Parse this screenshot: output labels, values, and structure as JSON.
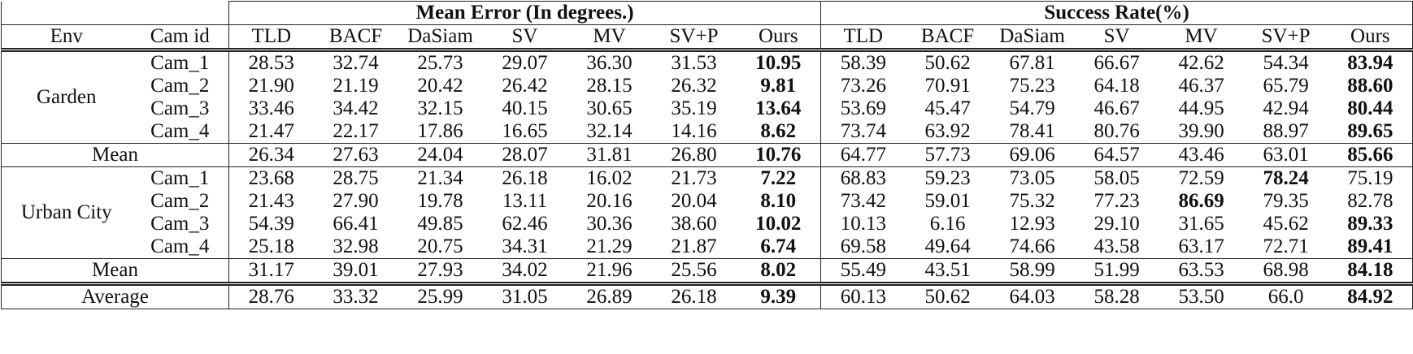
{
  "header": {
    "groups": [
      "Mean Error (In degrees.)",
      "Success Rate(%)"
    ],
    "columns": [
      "Env",
      "Cam id",
      "TLD",
      "BACF",
      "DaSiam",
      "SV",
      "MV",
      "SV+P",
      "Ours",
      "TLD",
      "BACF",
      "DaSiam",
      "SV",
      "MV",
      "SV+P",
      "Ours"
    ]
  },
  "groups": [
    {
      "env": "Garden",
      "rows": [
        {
          "cam": "Cam_1",
          "values": [
            "28.53",
            "32.74",
            "25.73",
            "29.07",
            "36.30",
            "31.53",
            "10.95",
            "58.39",
            "50.62",
            "67.81",
            "66.67",
            "42.62",
            "54.34",
            "83.94"
          ],
          "bold": [
            6,
            13
          ]
        },
        {
          "cam": "Cam_2",
          "values": [
            "21.90",
            "21.19",
            "20.42",
            "26.42",
            "28.15",
            "26.32",
            "9.81",
            "73.26",
            "70.91",
            "75.23",
            "64.18",
            "46.37",
            "65.79",
            "88.60"
          ],
          "bold": [
            6,
            13
          ]
        },
        {
          "cam": "Cam_3",
          "values": [
            "33.46",
            "34.42",
            "32.15",
            "40.15",
            "30.65",
            "35.19",
            "13.64",
            "53.69",
            "45.47",
            "54.79",
            "46.67",
            "44.95",
            "42.94",
            "80.44"
          ],
          "bold": [
            6,
            13
          ]
        },
        {
          "cam": "Cam_4",
          "values": [
            "21.47",
            "22.17",
            "17.86",
            "16.65",
            "32.14",
            "14.16",
            "8.62",
            "73.74",
            "63.92",
            "78.41",
            "80.76",
            "39.90",
            "88.97",
            "89.65"
          ],
          "bold": [
            6,
            13
          ]
        }
      ],
      "mean": {
        "label": "Mean",
        "values": [
          "26.34",
          "27.63",
          "24.04",
          "28.07",
          "31.81",
          "26.80",
          "10.76",
          "64.77",
          "57.73",
          "69.06",
          "64.57",
          "43.46",
          "63.01",
          "85.66"
        ],
        "bold": [
          6,
          13
        ]
      }
    },
    {
      "env": "Urban City",
      "rows": [
        {
          "cam": "Cam_1",
          "values": [
            "23.68",
            "28.75",
            "21.34",
            "26.18",
            "16.02",
            "21.73",
            "7.22",
            "68.83",
            "59.23",
            "73.05",
            "58.05",
            "72.59",
            "78.24",
            "75.19"
          ],
          "bold": [
            6,
            12
          ]
        },
        {
          "cam": "Cam_2",
          "values": [
            "21.43",
            "27.90",
            "19.78",
            "13.11",
            "20.16",
            "20.04",
            "8.10",
            "73.42",
            "59.01",
            "75.32",
            "77.23",
            "86.69",
            "79.35",
            "82.78"
          ],
          "bold": [
            6,
            11
          ]
        },
        {
          "cam": "Cam_3",
          "values": [
            "54.39",
            "66.41",
            "49.85",
            "62.46",
            "30.36",
            "38.60",
            "10.02",
            "10.13",
            "6.16",
            "12.93",
            "29.10",
            "31.65",
            "45.62",
            "89.33"
          ],
          "bold": [
            6,
            13
          ]
        },
        {
          "cam": "Cam_4",
          "values": [
            "25.18",
            "32.98",
            "20.75",
            "34.31",
            "21.29",
            "21.87",
            "6.74",
            "69.58",
            "49.64",
            "74.66",
            "43.58",
            "63.17",
            "72.71",
            "89.41"
          ],
          "bold": [
            6,
            13
          ]
        }
      ],
      "mean": {
        "label": "Mean",
        "values": [
          "31.17",
          "39.01",
          "27.93",
          "34.02",
          "21.96",
          "25.56",
          "8.02",
          "55.49",
          "43.51",
          "58.99",
          "51.99",
          "63.53",
          "68.98",
          "84.18"
        ],
        "bold": [
          6,
          13
        ]
      }
    }
  ],
  "average": {
    "label": "Average",
    "values": [
      "28.76",
      "33.32",
      "25.99",
      "31.05",
      "26.89",
      "26.18",
      "9.39",
      "60.13",
      "50.62",
      "64.03",
      "58.28",
      "53.50",
      "66.0",
      "84.92"
    ],
    "bold": [
      6,
      13
    ]
  }
}
